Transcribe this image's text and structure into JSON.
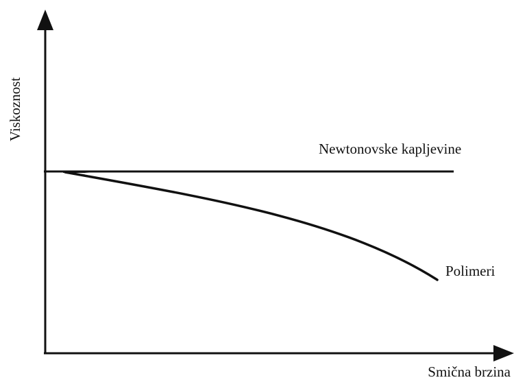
{
  "axes": {
    "y_label": "Viskoznost",
    "x_label": "Smična brzina"
  },
  "curves": [
    {
      "label": "Newtonovske kapljevine"
    },
    {
      "label": "Polimeri"
    }
  ]
}
